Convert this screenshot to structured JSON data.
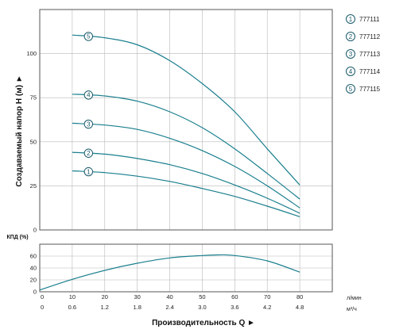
{
  "colors": {
    "curve": "#1a7f8e",
    "grid": "#b8b8b8",
    "frame": "#555555",
    "marker": "#1a5a6a"
  },
  "chart_data": [
    {
      "type": "line",
      "ylabel": "Создаваемый напор H (м) ►",
      "ylim": [
        0,
        125
      ],
      "yticks": [
        0,
        25,
        50,
        75,
        100
      ],
      "xlim": [
        0,
        90
      ],
      "xticks": [
        0,
        10,
        20,
        30,
        40,
        50,
        60,
        70,
        80
      ],
      "grid": true,
      "legend_position": "right",
      "series": [
        {
          "name": "777111",
          "marker": "1",
          "marker_at": 15,
          "x": [
            10,
            20,
            30,
            40,
            50,
            60,
            70,
            80
          ],
          "y": [
            33.5,
            32.5,
            30.5,
            27.5,
            23.5,
            19,
            13.5,
            7.5
          ]
        },
        {
          "name": "777112",
          "marker": "2",
          "marker_at": 15,
          "x": [
            10,
            20,
            30,
            40,
            50,
            60,
            70,
            80
          ],
          "y": [
            44,
            43,
            40.5,
            37,
            32,
            25.5,
            18,
            9.5
          ]
        },
        {
          "name": "777113",
          "marker": "3",
          "marker_at": 15,
          "x": [
            10,
            20,
            30,
            40,
            50,
            60,
            70,
            80
          ],
          "y": [
            60.5,
            59.5,
            57,
            52,
            45,
            36,
            25,
            12.5
          ]
        },
        {
          "name": "777114",
          "marker": "4",
          "marker_at": 15,
          "x": [
            10,
            20,
            30,
            40,
            50,
            60,
            70,
            80
          ],
          "y": [
            77,
            76,
            73,
            67,
            58,
            46,
            32,
            17.5
          ]
        },
        {
          "name": "777115",
          "marker": "5",
          "marker_at": 15,
          "x": [
            10,
            20,
            30,
            40,
            50,
            60,
            70,
            80
          ],
          "y": [
            110.5,
            109,
            105,
            96,
            83,
            67,
            46,
            25.5
          ]
        }
      ]
    },
    {
      "type": "line",
      "ylabel": "КПД (%)",
      "ylim": [
        0,
        80
      ],
      "yticks": [
        0,
        20,
        40,
        60
      ],
      "xlim": [
        0,
        90
      ],
      "xticks": [
        0,
        10,
        20,
        30,
        40,
        50,
        60,
        70,
        80
      ],
      "grid": true,
      "series": [
        {
          "name": "",
          "x": [
            0,
            10,
            20,
            30,
            40,
            50,
            55,
            60,
            70,
            80
          ],
          "y": [
            3,
            21,
            36,
            48,
            57,
            61,
            62,
            61,
            52,
            33
          ]
        }
      ]
    }
  ],
  "x_axis": {
    "lmin_ticks": [
      "0",
      "10",
      "20",
      "30",
      "40",
      "50",
      "60",
      "70",
      "80"
    ],
    "m3h_ticks": [
      "0",
      "0.6",
      "1.2",
      "1.8",
      "2.4",
      "3.0",
      "3.6",
      "4.2",
      "4.8"
    ],
    "unit_lmin": "л/мин",
    "unit_m3h": "м³/ч",
    "title": "Производительность Q ►"
  }
}
